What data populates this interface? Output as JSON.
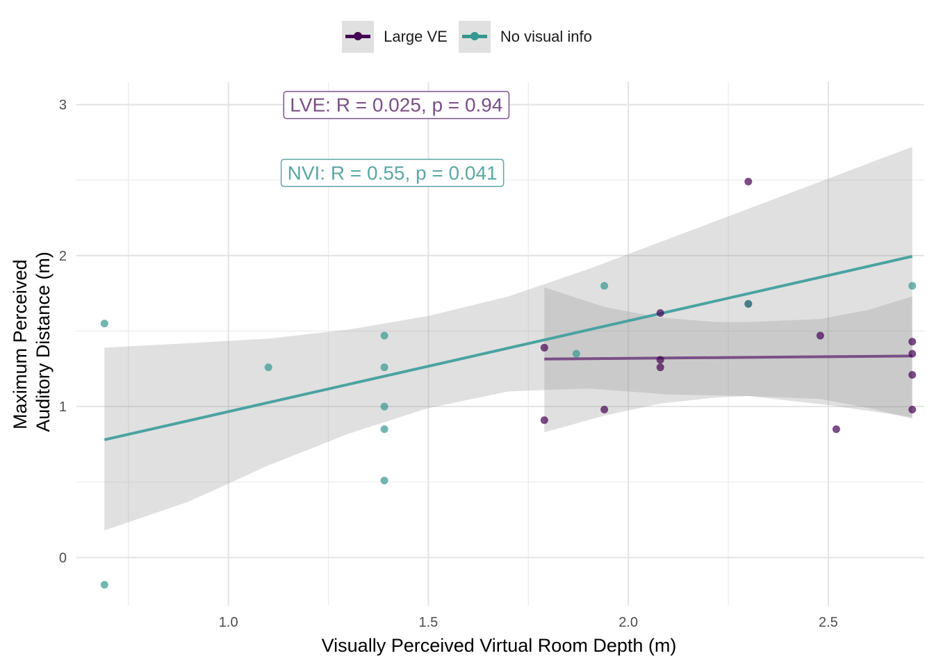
{
  "chart_data": {
    "type": "scatter",
    "title": "",
    "xlabel": "Visually Perceived Virtual Room Depth (m)",
    "ylabel_lines": [
      "Maximum Perceived",
      "Auditory Distance (m)"
    ],
    "xlim": [
      0.62,
      2.74
    ],
    "ylim": [
      -0.32,
      3.15
    ],
    "x_ticks": [
      1.0,
      1.5,
      2.0,
      2.5
    ],
    "x_tick_labels": [
      "1.0",
      "1.5",
      "2.0",
      "2.5"
    ],
    "y_ticks": [
      0,
      1,
      2,
      3
    ],
    "y_tick_labels": [
      "0",
      "1",
      "2",
      "3"
    ],
    "grid": true,
    "legend_position": "top",
    "series": [
      {
        "name": "Large VE",
        "color": "#440154",
        "line_color": "#7a4f86",
        "points": [
          [
            1.79,
            1.39
          ],
          [
            1.79,
            0.91
          ],
          [
            1.94,
            0.98
          ],
          [
            2.08,
            1.62
          ],
          [
            2.08,
            1.31
          ],
          [
            2.08,
            1.26
          ],
          [
            2.3,
            2.49
          ],
          [
            2.3,
            1.68
          ],
          [
            2.48,
            1.47
          ],
          [
            2.52,
            0.85
          ],
          [
            2.71,
            1.43
          ],
          [
            2.71,
            1.35
          ],
          [
            2.71,
            1.21
          ],
          [
            2.71,
            0.98
          ]
        ],
        "fit": {
          "x": [
            1.79,
            2.71
          ],
          "y": [
            1.315,
            1.335
          ]
        },
        "ci": {
          "x": [
            1.79,
            1.94,
            2.08,
            2.22,
            2.3,
            2.48,
            2.6,
            2.71
          ],
          "upper": [
            1.79,
            1.66,
            1.59,
            1.56,
            1.56,
            1.58,
            1.64,
            1.73
          ],
          "lower": [
            0.83,
            0.94,
            1.02,
            1.06,
            1.07,
            1.05,
            0.99,
            0.92
          ]
        }
      },
      {
        "name": "No visual info",
        "color": "#35978f",
        "line_color": "#4aa3a0",
        "points": [
          [
            0.69,
            1.55
          ],
          [
            0.69,
            -0.18
          ],
          [
            1.1,
            1.26
          ],
          [
            1.39,
            1.47
          ],
          [
            1.39,
            1.26
          ],
          [
            1.39,
            1.0
          ],
          [
            1.39,
            0.85
          ],
          [
            1.39,
            0.51
          ],
          [
            1.87,
            1.35
          ],
          [
            1.94,
            1.8
          ],
          [
            2.3,
            1.68
          ],
          [
            2.71,
            1.8
          ]
        ],
        "fit": {
          "x": [
            0.69,
            2.71
          ],
          "y": [
            0.78,
            1.995
          ]
        },
        "ci": {
          "x": [
            0.69,
            0.9,
            1.1,
            1.3,
            1.5,
            1.7,
            1.9,
            2.1,
            2.3,
            2.5,
            2.71
          ],
          "upper": [
            1.39,
            1.42,
            1.45,
            1.51,
            1.6,
            1.73,
            1.91,
            2.11,
            2.31,
            2.51,
            2.72
          ],
          "lower": [
            0.18,
            0.37,
            0.61,
            0.82,
            0.99,
            1.1,
            1.12,
            1.08,
            1.07,
            1.01,
            0.93
          ]
        }
      }
    ],
    "annotations": [
      {
        "text": "LVE: R = 0.025, p =  0.94",
        "color": "#7a4f86",
        "x": 1.42,
        "y": 3.0
      },
      {
        "text": "NVI: R = 0.55, p =  0.041",
        "color": "#5aa7a3",
        "x": 1.41,
        "y": 2.55
      }
    ]
  }
}
